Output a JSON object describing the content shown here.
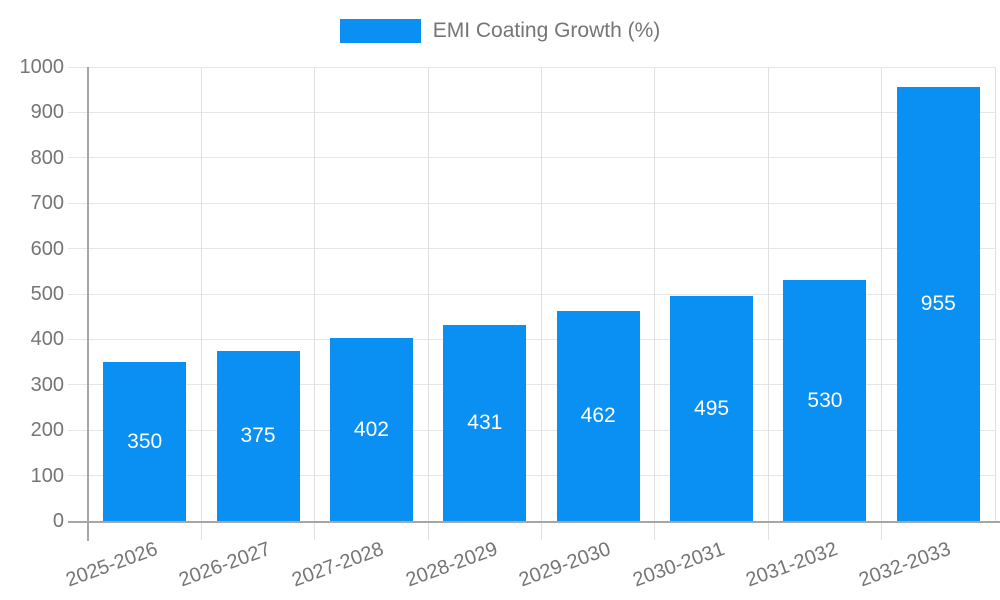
{
  "chart_data": {
    "type": "bar",
    "title": "",
    "legend": "EMI Coating Growth (%)",
    "legend_position": "top",
    "categories": [
      "2025-2026",
      "2026-2027",
      "2027-2028",
      "2028-2029",
      "2029-2030",
      "2030-2031",
      "2031-2032",
      "2032-2033"
    ],
    "values": [
      350,
      375,
      402,
      431,
      462,
      495,
      530,
      955
    ],
    "xlabel": "",
    "ylabel": "",
    "ylim": [
      0,
      1000
    ],
    "ytick_step": 100,
    "yticks": [
      "0",
      "100",
      "200",
      "300",
      "400",
      "500",
      "600",
      "700",
      "800",
      "900",
      "1000"
    ],
    "grid": true,
    "bar_color": "#0a90f2",
    "value_label_color": "#ffffff",
    "axis_text_color": "#757575",
    "gridline_color": "#e6e6e6",
    "axis_line_color": "#a6a6a6"
  }
}
